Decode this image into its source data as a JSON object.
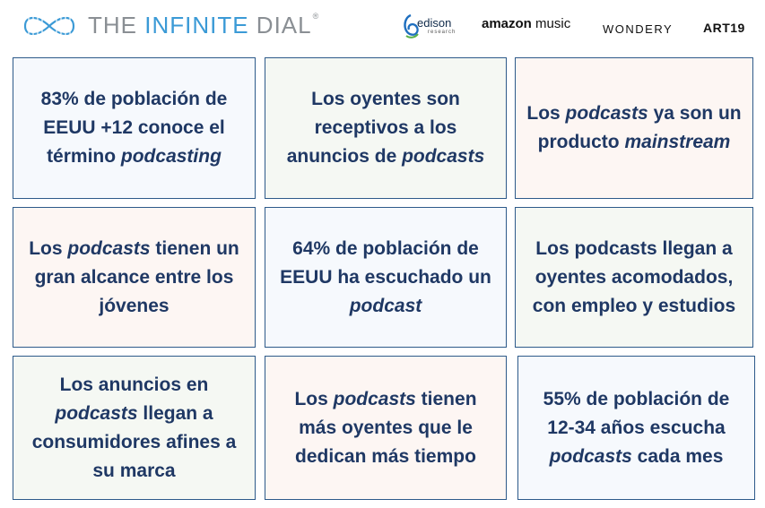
{
  "header": {
    "title_light": "THE ",
    "title_accent": "INFINITE",
    "title_rest": " DIAL",
    "title_mark": "®",
    "sponsors": {
      "edison": "edison",
      "edison_sub": "research",
      "amazon_bold": "amazon",
      "amazon_rest": " music",
      "wondery": "WONDERY",
      "art19": "ART19"
    },
    "colors": {
      "logo_blue": "#3b9ad6",
      "logo_gray": "#8a8f94"
    }
  },
  "cards": [
    {
      "parts": [
        "83% de población de EEUU +12 conoce el término ",
        "podcasting",
        ""
      ]
    },
    {
      "parts": [
        "Los oyentes son receptivos a los anuncios de ",
        "podcasts",
        ""
      ]
    },
    {
      "parts": [
        "Los ",
        "podcasts",
        " ya son un producto ",
        "mainstream",
        ""
      ]
    },
    {
      "parts": [
        "Los ",
        "podcasts",
        " tienen un gran alcance entre los jóvenes"
      ]
    },
    {
      "parts": [
        "64% de población de EEUU ha escuchado un ",
        "podcast",
        ""
      ]
    },
    {
      "parts": [
        "Los podcasts llegan a oyentes acomodados, con empleo y estudios"
      ]
    },
    {
      "parts": [
        "Los anuncios en ",
        "podcasts",
        " llegan a consumidores afines a su marca"
      ]
    },
    {
      "parts": [
        "Los ",
        "podcasts",
        " tienen más oyentes que le dedican más tiempo"
      ]
    },
    {
      "parts": [
        "55% de población de 12-34 años escucha ",
        "podcasts",
        " cada mes"
      ]
    }
  ],
  "colors": {
    "text": "#1f3864",
    "border": "#2d5a8a"
  }
}
